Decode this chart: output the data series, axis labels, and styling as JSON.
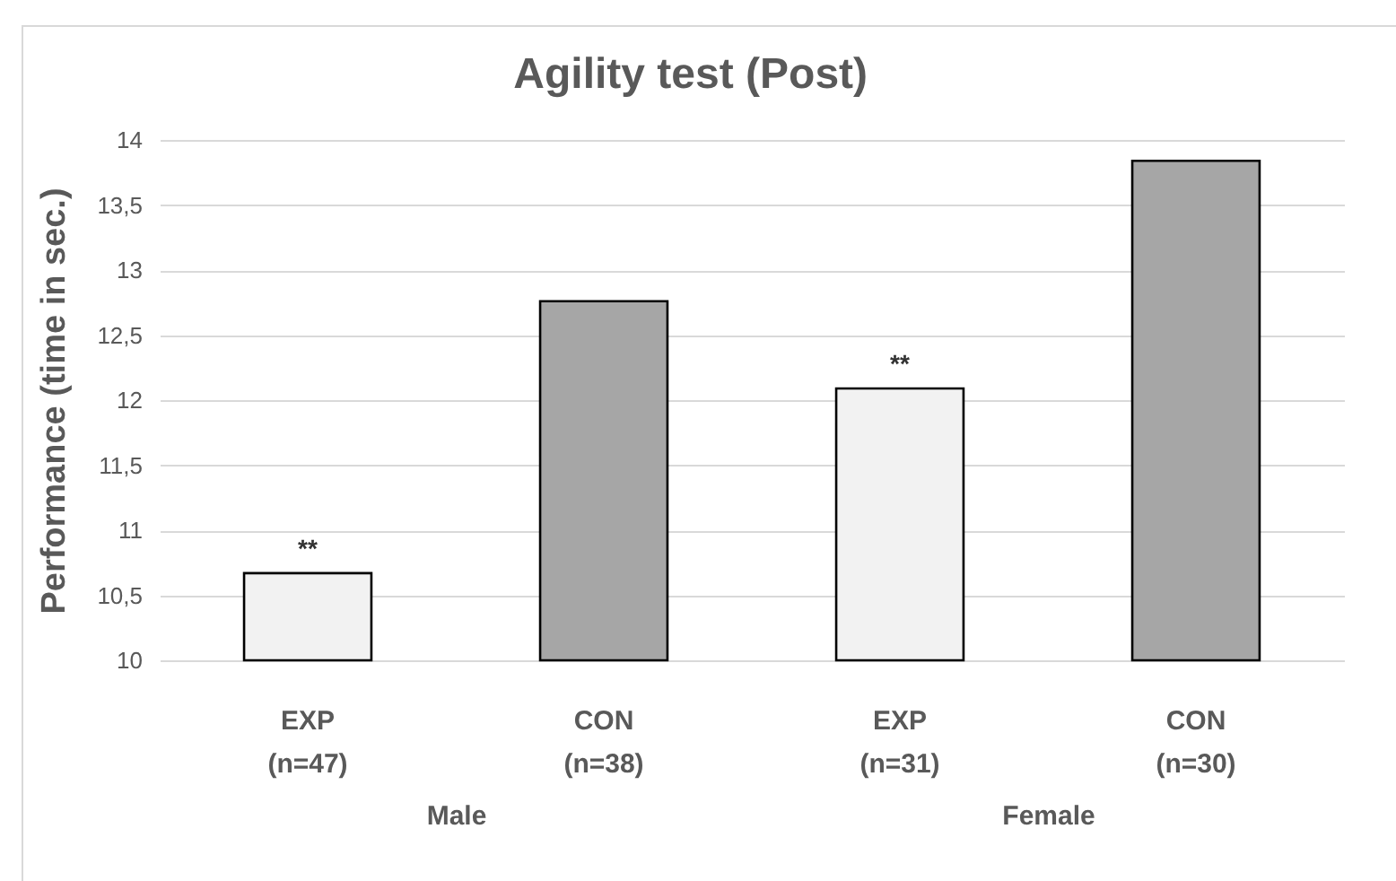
{
  "chart_data": {
    "type": "bar",
    "title": "Agility test (Post)",
    "ylabel": "Performance (time in sec.)",
    "categories": [
      "EXP\n(n=47)",
      "CON\n(n=38)",
      "EXP\n(n=31)",
      "CON\n(n=30)"
    ],
    "values": [
      10.67,
      12.76,
      12.09,
      13.84
    ],
    "colors": [
      "#f2f2f2",
      "#a6a6a6",
      "#f2f2f2",
      "#a6a6a6"
    ],
    "ylim": [
      10,
      14
    ],
    "yticks": [
      {
        "value": 10,
        "label": "10"
      },
      {
        "value": 10.5,
        "label": "10,5"
      },
      {
        "value": 11,
        "label": "11"
      },
      {
        "value": 11.5,
        "label": "11,5"
      },
      {
        "value": 12,
        "label": "12"
      },
      {
        "value": 12.5,
        "label": "12,5"
      },
      {
        "value": 13,
        "label": "13"
      },
      {
        "value": 13.5,
        "label": "13,5"
      },
      {
        "value": 14,
        "label": "14"
      }
    ],
    "grid": "y",
    "annotations": [
      {
        "text": "**",
        "x": "EXP\n(n=47)",
        "y": 10.67
      },
      {
        "text": "**",
        "x": "EXP\n(n=31)",
        "y": 12.09
      },
      "Male",
      "Female"
    ]
  }
}
